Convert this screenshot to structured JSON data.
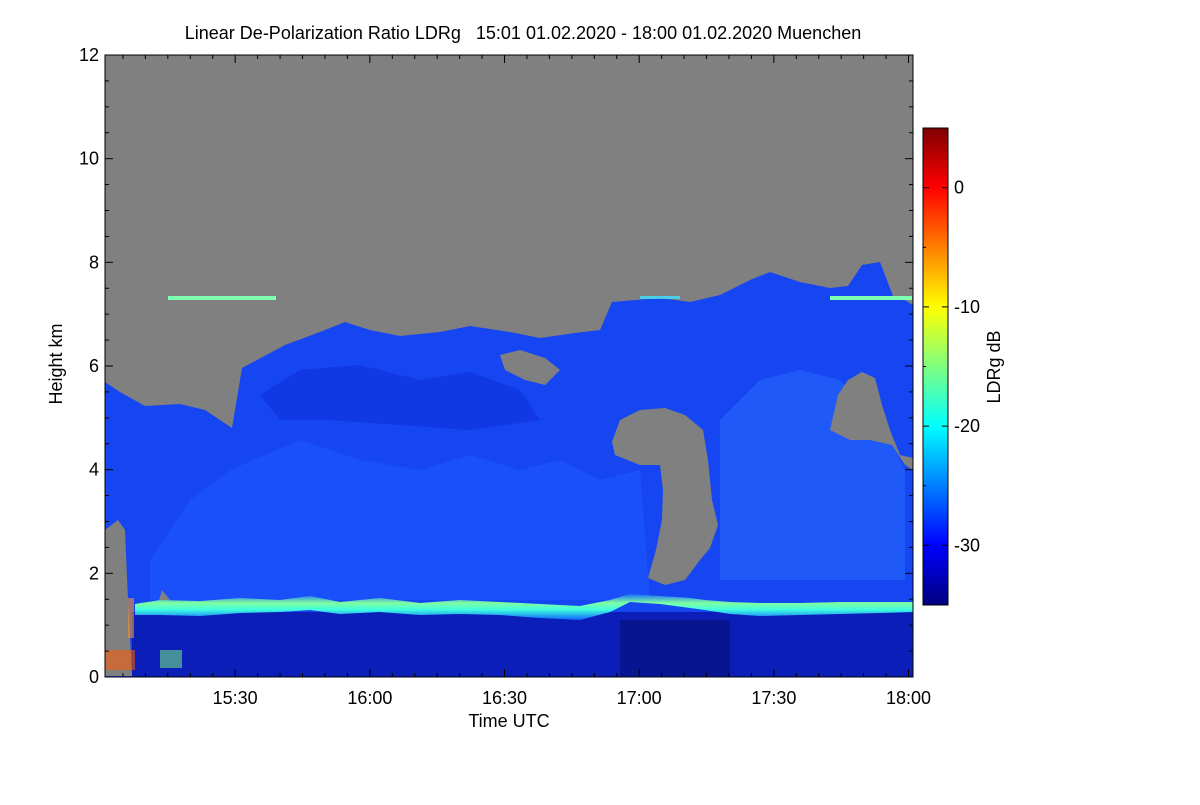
{
  "chart_data": {
    "type": "heatmap",
    "title": "Linear De-Polarization Ratio LDRg   15:01 01.02.2020 - 18:00 01.02.2020 Muenchen",
    "xlabel": "Time UTC",
    "ylabel": "Height km",
    "colorbar_label": "LDRg dB",
    "xlim": [
      "15:01",
      "18:01"
    ],
    "x_ticks": [
      "15:30",
      "16:00",
      "16:30",
      "17:00",
      "17:30",
      "18:00"
    ],
    "ylim": [
      0,
      12
    ],
    "y_ticks": [
      0,
      2,
      4,
      6,
      8,
      10,
      12
    ],
    "colorbar_range": [
      -35,
      5
    ],
    "colorbar_ticks": [
      0,
      -10,
      -20,
      -30
    ],
    "no_signal_color": "#808080",
    "colormap": [
      "#00007f",
      "#0000ff",
      "#007fff",
      "#00ffff",
      "#7fff7f",
      "#ffff00",
      "#ff7f00",
      "#ff0000",
      "#7f0000"
    ],
    "features": {
      "cloud_top_km": [
        5.6,
        5.0,
        4.9,
        6.0,
        6.3,
        6.5,
        6.4,
        5.5,
        6.5,
        7.0,
        7.2,
        7.3,
        5.8,
        4.6
      ],
      "boundary_layer_top_km": [
        1.4,
        1.45,
        1.5,
        1.45,
        1.4,
        1.55,
        1.5,
        1.4,
        1.38
      ],
      "cirrus_layer_km": 7.3
    }
  }
}
